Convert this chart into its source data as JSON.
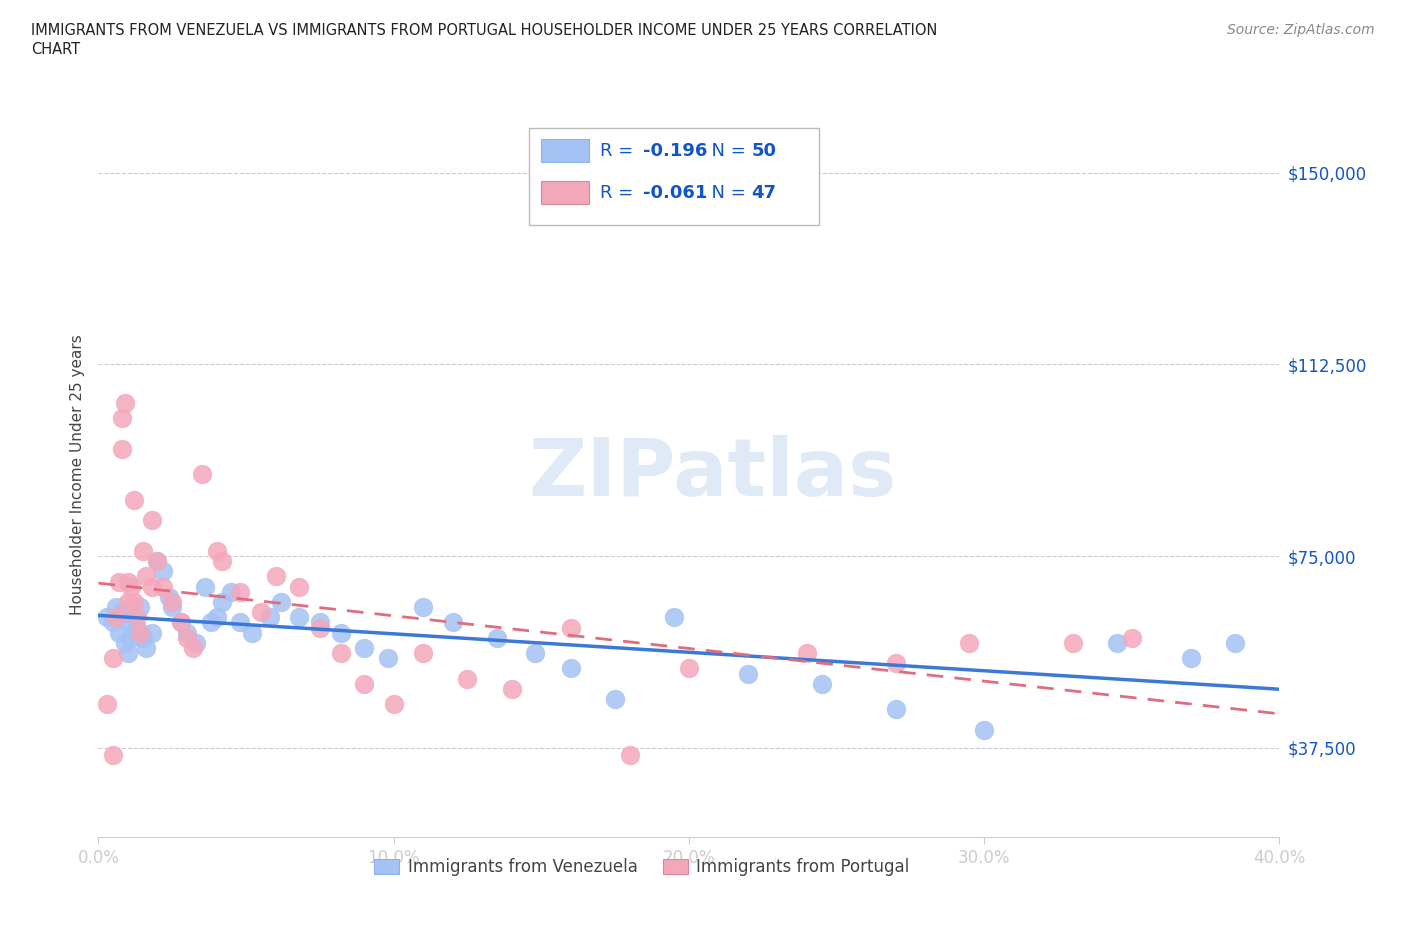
{
  "title_line1": "IMMIGRANTS FROM VENEZUELA VS IMMIGRANTS FROM PORTUGAL HOUSEHOLDER INCOME UNDER 25 YEARS CORRELATION",
  "title_line2": "CHART",
  "source": "Source: ZipAtlas.com",
  "ylabel": "Householder Income Under 25 years",
  "xlim": [
    0.0,
    0.4
  ],
  "ylim": [
    20000,
    162000
  ],
  "yticks": [
    37500,
    75000,
    112500,
    150000
  ],
  "ytick_labels": [
    "$37,500",
    "$75,000",
    "$112,500",
    "$150,000"
  ],
  "xticks": [
    0.0,
    0.1,
    0.2,
    0.3,
    0.4
  ],
  "xtick_labels": [
    "0.0%",
    "10.0%",
    "20.0%",
    "30.0%",
    "40.0%"
  ],
  "watermark": "ZIPatlas",
  "r1_val": "-0.196",
  "n1_val": "50",
  "r2_val": "-0.061",
  "n2_val": "47",
  "venezuela_color": "#a4c2f4",
  "portugal_color": "#f4a7b9",
  "venezuela_line_color": "#3c78d8",
  "portugal_line_color": "#e06c7e",
  "text_blue": "#1155cc",
  "text_dark": "#333333",
  "grid_color": "#cccccc",
  "legend_text_color": "#1155cc",
  "bottom_legend_ven": "Immigrants from Venezuela",
  "bottom_legend_por": "Immigrants from Portugal",
  "venezuela_x": [
    0.003,
    0.005,
    0.006,
    0.007,
    0.008,
    0.009,
    0.01,
    0.01,
    0.011,
    0.012,
    0.013,
    0.014,
    0.015,
    0.016,
    0.018,
    0.02,
    0.022,
    0.024,
    0.025,
    0.028,
    0.03,
    0.033,
    0.036,
    0.038,
    0.04,
    0.042,
    0.045,
    0.048,
    0.052,
    0.058,
    0.062,
    0.068,
    0.075,
    0.082,
    0.09,
    0.098,
    0.11,
    0.12,
    0.135,
    0.148,
    0.16,
    0.175,
    0.195,
    0.22,
    0.245,
    0.27,
    0.3,
    0.345,
    0.37,
    0.385
  ],
  "venezuela_y": [
    63000,
    62000,
    65000,
    60000,
    64000,
    58000,
    62000,
    56000,
    59000,
    63000,
    61000,
    65000,
    59000,
    57000,
    60000,
    74000,
    72000,
    67000,
    65000,
    62000,
    60000,
    58000,
    69000,
    62000,
    63000,
    66000,
    68000,
    62000,
    60000,
    63000,
    66000,
    63000,
    62000,
    60000,
    57000,
    55000,
    65000,
    62000,
    59000,
    56000,
    53000,
    47000,
    63000,
    52000,
    50000,
    45000,
    41000,
    58000,
    55000,
    58000
  ],
  "portugal_x": [
    0.003,
    0.005,
    0.006,
    0.007,
    0.008,
    0.009,
    0.01,
    0.01,
    0.011,
    0.012,
    0.013,
    0.014,
    0.015,
    0.016,
    0.018,
    0.02,
    0.022,
    0.025,
    0.028,
    0.03,
    0.032,
    0.035,
    0.04,
    0.042,
    0.048,
    0.055,
    0.06,
    0.068,
    0.075,
    0.082,
    0.09,
    0.1,
    0.11,
    0.125,
    0.14,
    0.16,
    0.18,
    0.2,
    0.24,
    0.27,
    0.295,
    0.33,
    0.35,
    0.005,
    0.008,
    0.012,
    0.018
  ],
  "portugal_y": [
    46000,
    55000,
    63000,
    70000,
    102000,
    105000,
    66000,
    70000,
    69000,
    66000,
    63000,
    60000,
    76000,
    71000,
    69000,
    74000,
    69000,
    66000,
    62000,
    59000,
    57000,
    91000,
    76000,
    74000,
    68000,
    64000,
    71000,
    69000,
    61000,
    56000,
    50000,
    46000,
    56000,
    51000,
    49000,
    61000,
    36000,
    53000,
    56000,
    54000,
    58000,
    58000,
    59000,
    36000,
    96000,
    86000,
    82000
  ]
}
